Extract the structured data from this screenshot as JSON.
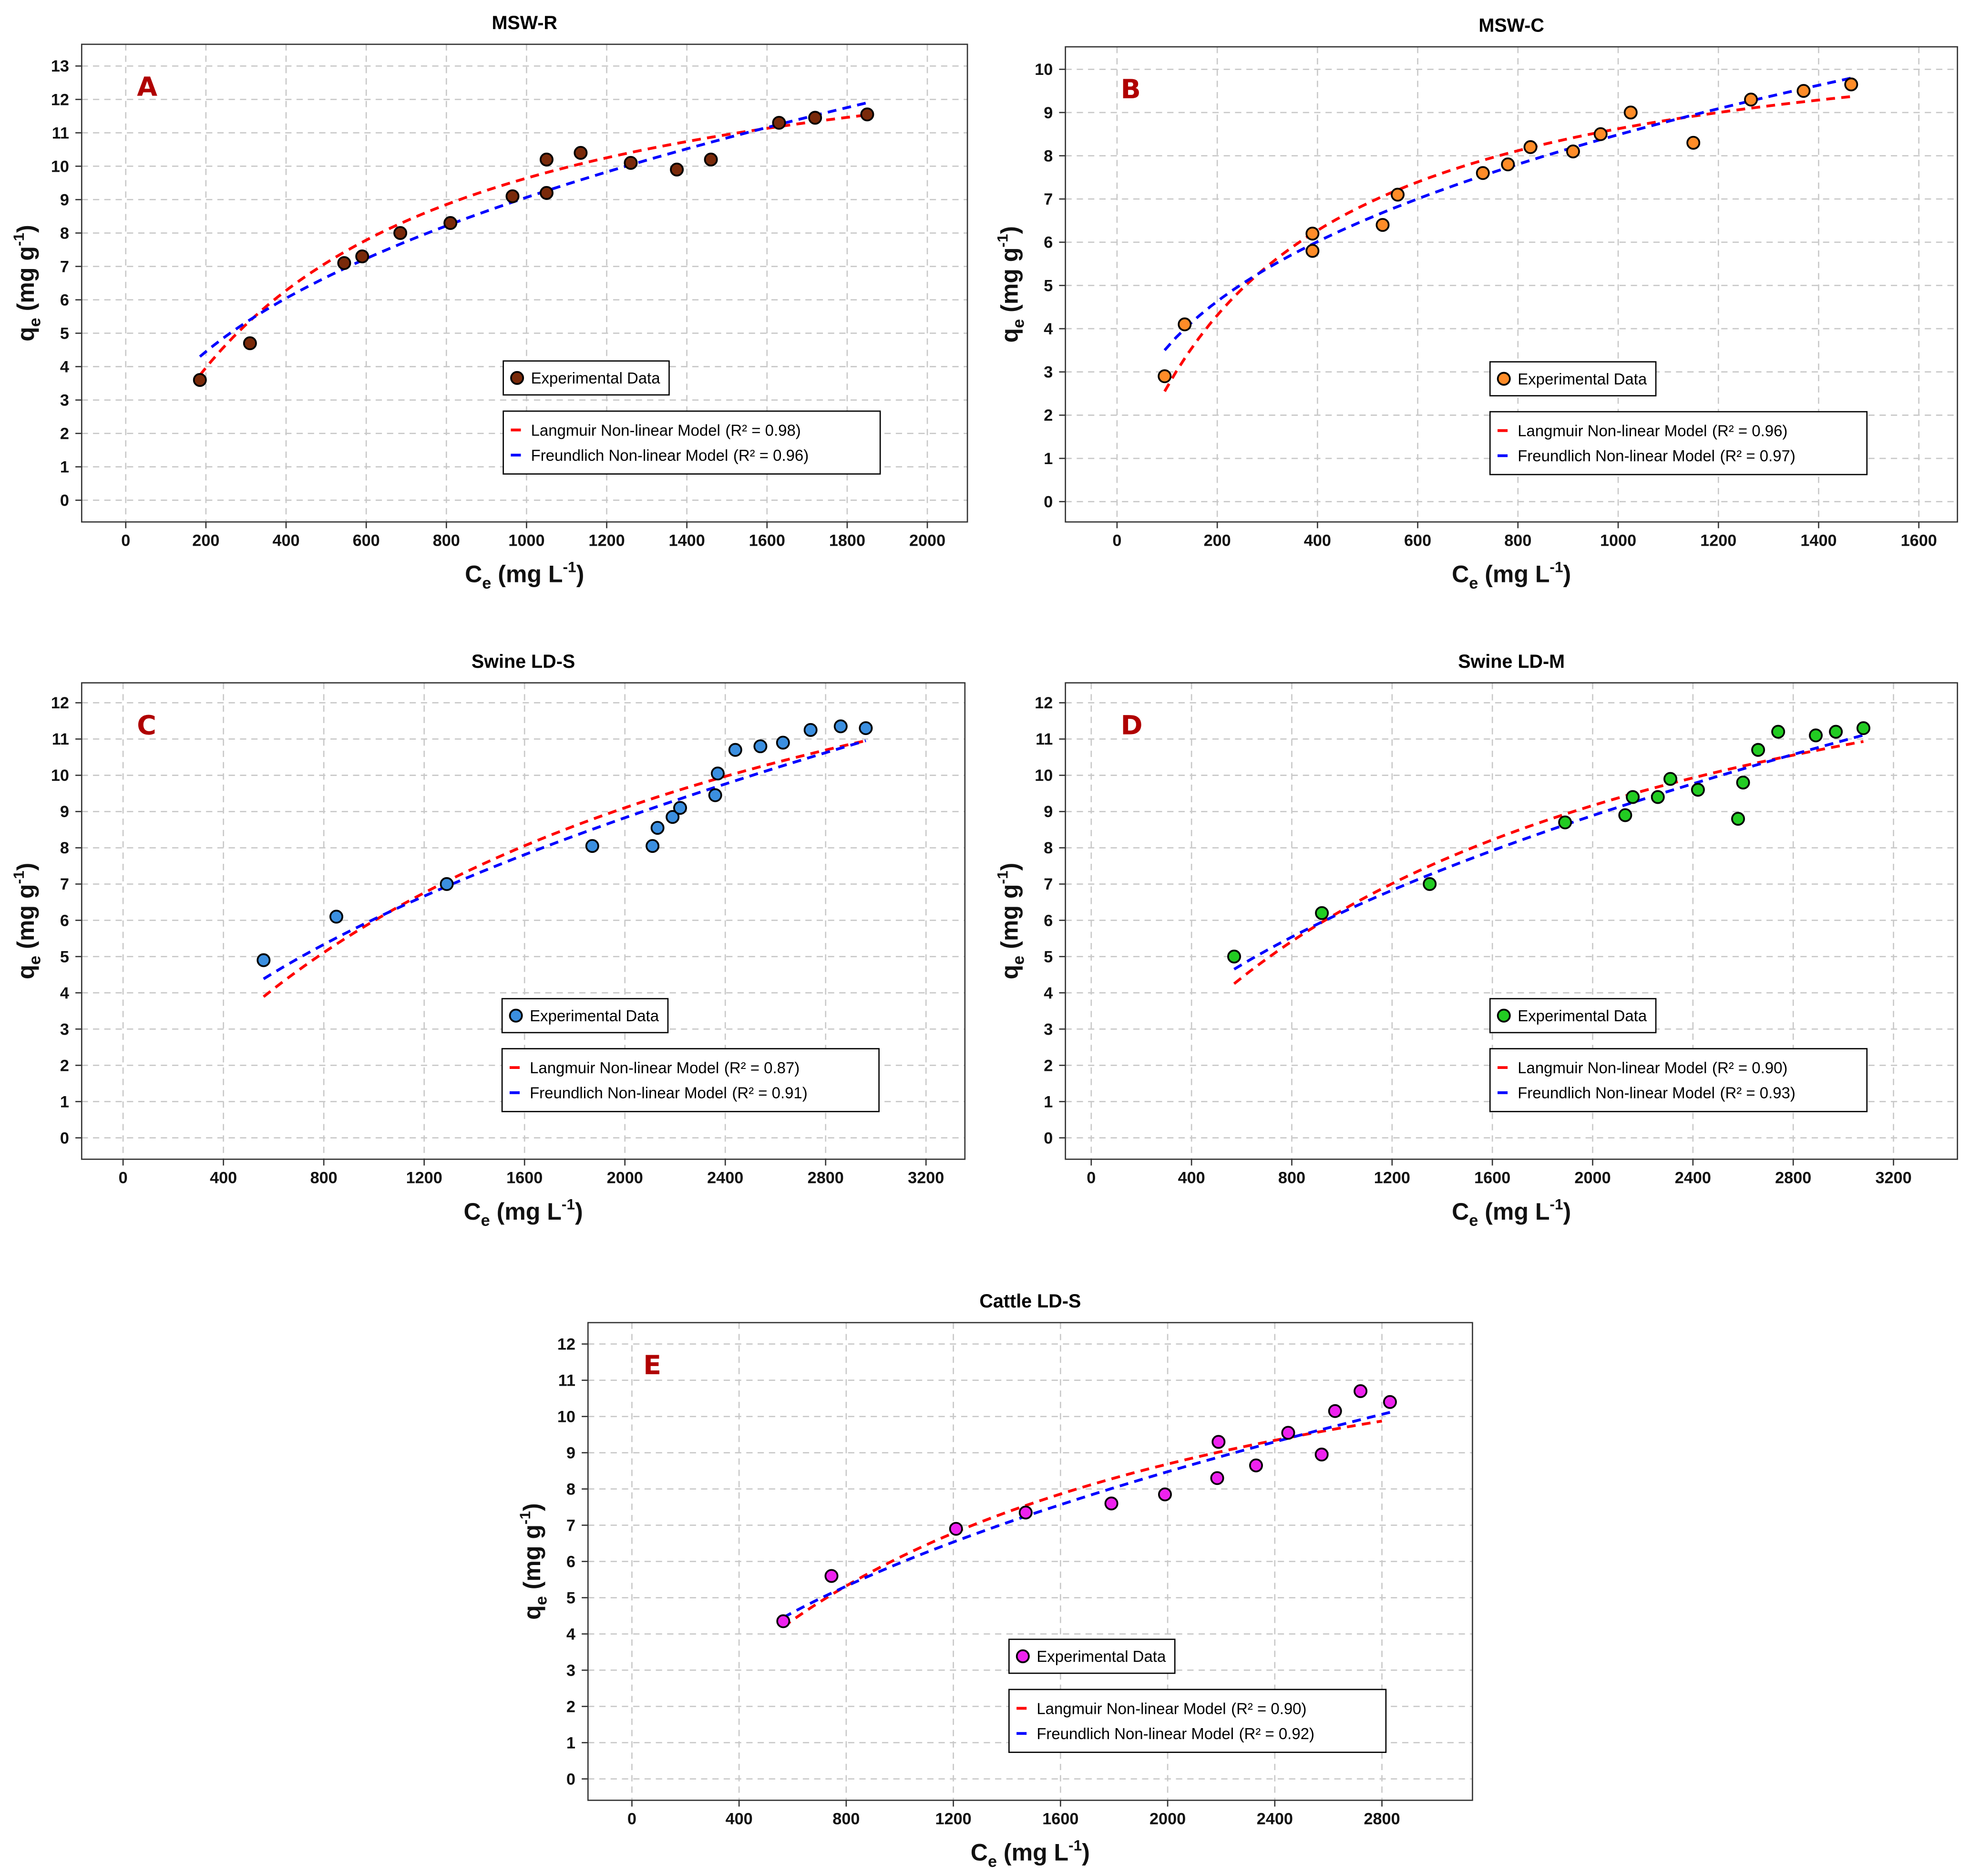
{
  "figure": {
    "axis_labels": {
      "x_main": "C",
      "x_sub": "e",
      "x_unit": " (mg L",
      "x_sup": "-1",
      "x_close": ")",
      "y_main": "q",
      "y_sub": "e",
      "y_unit": " (mg g",
      "y_sup": "-1",
      "y_close": ")"
    },
    "legend": {
      "experimental": "Experimental Data",
      "langmuir": "Langmuir Non-linear Model",
      "freundlich": "Freundlich Non-linear Model"
    },
    "colors": {
      "langmuir": "#ff0000",
      "freundlich": "#0000ff"
    }
  },
  "chart_data": [
    {
      "type": "scatter",
      "title": "MSW-R",
      "panel_label": "A",
      "xlabel": "Ce (mg L-1)",
      "ylabel": "qe (mg g-1)",
      "xlim": [
        -110,
        2100
      ],
      "ylim": [
        -0.65,
        13.65
      ],
      "xticks": [
        0,
        200,
        400,
        600,
        800,
        1000,
        1200,
        1400,
        1600,
        1800,
        2000
      ],
      "yticks": [
        0,
        1,
        2,
        3,
        4,
        5,
        6,
        7,
        8,
        9,
        10,
        11,
        12,
        13
      ],
      "grid": true,
      "point_color": "#7a2a0a",
      "legend_placement": "bottom-center",
      "points": [
        [
          185,
          3.6
        ],
        [
          310,
          4.7
        ],
        [
          545,
          7.1
        ],
        [
          590,
          7.3
        ],
        [
          685,
          8.0
        ],
        [
          810,
          8.3
        ],
        [
          965,
          9.1
        ],
        [
          1050,
          9.2
        ],
        [
          1050,
          10.2
        ],
        [
          1135,
          10.4
        ],
        [
          1260,
          10.1
        ],
        [
          1375,
          9.9
        ],
        [
          1460,
          10.2
        ],
        [
          1630,
          11.3
        ],
        [
          1720,
          11.45
        ],
        [
          1850,
          11.55
        ]
      ],
      "langmuir": {
        "qmax": 15,
        "KL": 0.0018,
        "r2_label": "(R² = 0.98)",
        "x_range": [
          185,
          1850
        ]
      },
      "freundlich": {
        "KF": 0.428,
        "n_inv": 0.442,
        "r2_label": "(R² = 0.96)",
        "x_range": [
          185,
          1850
        ]
      }
    },
    {
      "type": "scatter",
      "title": "MSW-C",
      "panel_label": "B",
      "xlabel": "Ce (mg L-1)",
      "ylabel": "qe (mg g-1)",
      "xlim": [
        -103,
        1677
      ],
      "ylim": [
        -0.47,
        10.52
      ],
      "xticks": [
        0,
        200,
        400,
        600,
        800,
        1000,
        1200,
        1400,
        1600
      ],
      "yticks": [
        0,
        1,
        2,
        3,
        4,
        5,
        6,
        7,
        8,
        9,
        10
      ],
      "grid": true,
      "point_color": "#ff8c28",
      "legend_placement": "bottom-center",
      "points": [
        [
          95,
          2.9
        ],
        [
          135,
          4.1
        ],
        [
          390,
          6.2
        ],
        [
          390,
          5.8
        ],
        [
          530,
          6.4
        ],
        [
          560,
          7.1
        ],
        [
          730,
          7.6
        ],
        [
          780,
          7.8
        ],
        [
          825,
          8.2
        ],
        [
          910,
          8.1
        ],
        [
          965,
          8.5
        ],
        [
          1025,
          9.0
        ],
        [
          1150,
          8.3
        ],
        [
          1265,
          9.3
        ],
        [
          1370,
          9.5
        ],
        [
          1465,
          9.65
        ]
      ],
      "langmuir": {
        "qmax": 11.5,
        "KL": 0.003,
        "r2_label": "(R² = 0.96)",
        "x_range": [
          95,
          1465
        ]
      },
      "freundlich": {
        "KF": 0.632,
        "n_inv": 0.376,
        "r2_label": "(R² = 0.97)",
        "x_range": [
          95,
          1465
        ]
      }
    },
    {
      "type": "scatter",
      "title": "Swine LD-S",
      "panel_label": "C",
      "xlabel": "Ce (mg L-1)",
      "ylabel": "qe (mg g-1)",
      "xlim": [
        -165,
        3355
      ],
      "ylim": [
        -0.59,
        12.55
      ],
      "xticks": [
        0,
        400,
        800,
        1200,
        1600,
        2000,
        2400,
        2800,
        3200
      ],
      "yticks": [
        0,
        1,
        2,
        3,
        4,
        5,
        6,
        7,
        8,
        9,
        10,
        11,
        12
      ],
      "grid": true,
      "point_color": "#3b8fe0",
      "legend_placement": "bottom-center",
      "points": [
        [
          560,
          4.9
        ],
        [
          850,
          6.1
        ],
        [
          1290,
          7.0
        ],
        [
          1870,
          8.05
        ],
        [
          2110,
          8.05
        ],
        [
          2130,
          8.55
        ],
        [
          2190,
          8.85
        ],
        [
          2220,
          9.1
        ],
        [
          2360,
          9.45
        ],
        [
          2370,
          10.05
        ],
        [
          2440,
          10.7
        ],
        [
          2540,
          10.8
        ],
        [
          2630,
          10.9
        ],
        [
          2740,
          11.25
        ],
        [
          2860,
          11.35
        ],
        [
          2960,
          11.3
        ]
      ],
      "langmuir": {
        "qmax": 19,
        "KL": 0.00046,
        "r2_label": "(R² = 0.87)",
        "x_range": [
          560,
          2960
        ]
      },
      "freundlich": {
        "KF": 0.135,
        "n_inv": 0.55,
        "r2_label": "(R² = 0.91)",
        "x_range": [
          560,
          2960
        ]
      }
    },
    {
      "type": "scatter",
      "title": "Swine LD-M",
      "panel_label": "D",
      "xlabel": "Ce (mg L-1)",
      "ylabel": "qe (mg g-1)",
      "xlim": [
        -103,
        3455
      ],
      "ylim": [
        -0.59,
        12.55
      ],
      "xticks": [
        0,
        400,
        800,
        1200,
        1600,
        2000,
        2400,
        2800,
        3200
      ],
      "yticks": [
        0,
        1,
        2,
        3,
        4,
        5,
        6,
        7,
        8,
        9,
        10,
        11,
        12
      ],
      "grid": true,
      "point_color": "#22cc22",
      "legend_placement": "bottom-center",
      "points": [
        [
          570,
          5.0
        ],
        [
          920,
          6.2
        ],
        [
          1350,
          7.0
        ],
        [
          1890,
          8.7
        ],
        [
          2130,
          8.9
        ],
        [
          2160,
          9.4
        ],
        [
          2260,
          9.4
        ],
        [
          2310,
          9.9
        ],
        [
          2420,
          9.6
        ],
        [
          2580,
          8.8
        ],
        [
          2600,
          9.8
        ],
        [
          2660,
          10.7
        ],
        [
          2740,
          11.2
        ],
        [
          2890,
          11.1
        ],
        [
          2970,
          11.2
        ],
        [
          3080,
          11.3
        ]
      ],
      "langmuir": {
        "qmax": 17,
        "KL": 0.000585,
        "r2_label": "(R² = 0.90)",
        "x_range": [
          570,
          3080
        ]
      },
      "freundlich": {
        "KF": 0.176,
        "n_inv": 0.516,
        "r2_label": "(R² = 0.93)",
        "x_range": [
          570,
          3080
        ]
      }
    },
    {
      "type": "scatter",
      "title": "Cattle LD-S",
      "panel_label": "E",
      "xlabel": "Ce (mg L-1)",
      "ylabel": "qe (mg g-1)",
      "xlim": [
        -164,
        3138
      ],
      "ylim": [
        -0.59,
        12.59
      ],
      "xticks": [
        0,
        400,
        800,
        1200,
        1600,
        2000,
        2400,
        2800
      ],
      "yticks": [
        0,
        1,
        2,
        3,
        4,
        5,
        6,
        7,
        8,
        9,
        10,
        11,
        12
      ],
      "grid": true,
      "point_color": "#ee22ee",
      "legend_placement": "bottom-center",
      "points": [
        [
          565,
          4.35
        ],
        [
          745,
          5.6
        ],
        [
          1210,
          6.9
        ],
        [
          1470,
          7.35
        ],
        [
          1790,
          7.6
        ],
        [
          1990,
          7.85
        ],
        [
          2185,
          8.3
        ],
        [
          2190,
          9.3
        ],
        [
          2330,
          8.65
        ],
        [
          2450,
          9.55
        ],
        [
          2575,
          8.95
        ],
        [
          2625,
          10.15
        ],
        [
          2720,
          10.7
        ],
        [
          2830,
          10.4
        ]
      ],
      "langmuir": {
        "qmax": 15,
        "KL": 0.000688,
        "r2_label": "(R² = 0.90)",
        "x_range": [
          565,
          2800
        ]
      },
      "freundlich": {
        "KF": 0.177,
        "n_inv": 0.509,
        "r2_label": "(R² = 0.92)",
        "x_range": [
          565,
          2830
        ]
      }
    }
  ]
}
